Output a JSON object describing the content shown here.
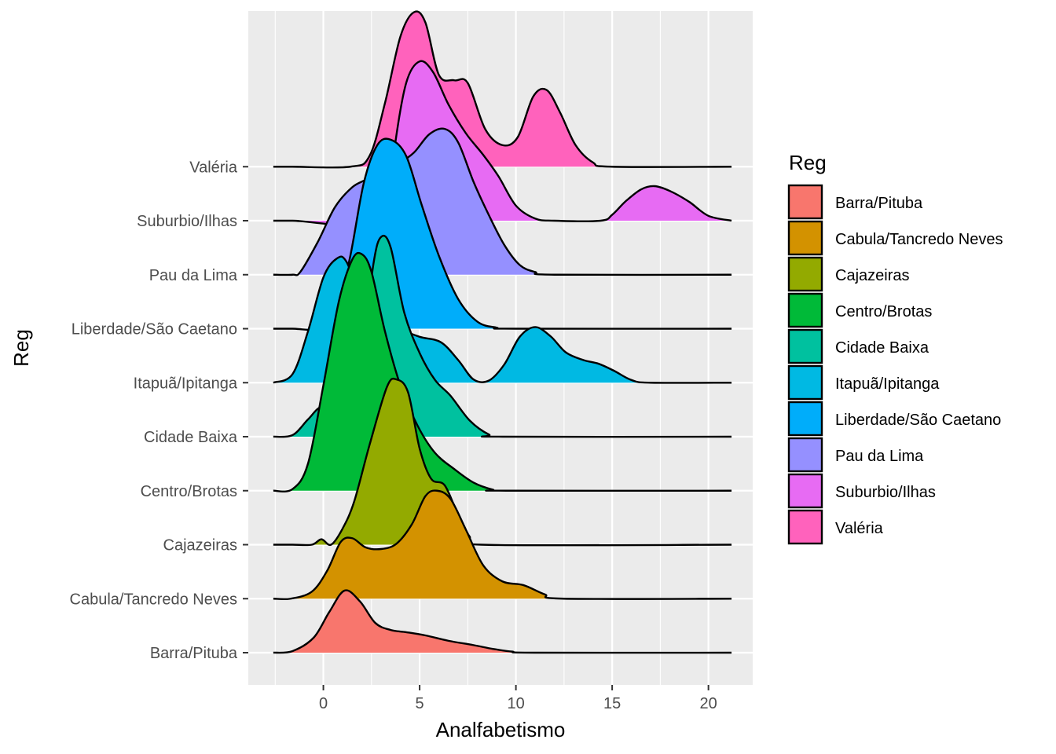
{
  "chart_data": {
    "type": "ridgeline",
    "xlabel": "Analfabetismo",
    "ylabel": "Reg",
    "xlim": [
      -3.9,
      22.3
    ],
    "x_ticks": [
      0,
      5,
      10,
      15,
      20
    ],
    "x_tick_labels": [
      "0",
      "5",
      "10",
      "15",
      "20"
    ],
    "grid": true,
    "legend": {
      "title": "Reg",
      "position": "right"
    },
    "series": [
      {
        "name": "Barra/Pituba",
        "color": "#F8766D",
        "x_range": [
          -2.6,
          21.2
        ],
        "peaks": [
          [
            -2.6,
            0.0
          ],
          [
            -1.6,
            0.03
          ],
          [
            -0.5,
            0.28
          ],
          [
            0.3,
            0.75
          ],
          [
            1.1,
            1.15
          ],
          [
            1.9,
            0.95
          ],
          [
            2.7,
            0.55
          ],
          [
            3.5,
            0.42
          ],
          [
            4.3,
            0.38
          ],
          [
            5.3,
            0.32
          ],
          [
            6.5,
            0.22
          ],
          [
            7.8,
            0.14
          ],
          [
            8.8,
            0.07
          ],
          [
            9.8,
            0.02
          ],
          [
            11,
            0.0
          ],
          [
            21.2,
            0.0
          ]
        ]
      },
      {
        "name": "Cabula/Tancredo Neves",
        "color": "#D39200",
        "x_range": [
          -2.6,
          21.2
        ],
        "peaks": [
          [
            -2.6,
            0.0
          ],
          [
            -1.7,
            0.0
          ],
          [
            -0.6,
            0.13
          ],
          [
            0.2,
            0.52
          ],
          [
            0.9,
            1.05
          ],
          [
            1.5,
            1.12
          ],
          [
            2.2,
            0.95
          ],
          [
            3.0,
            0.92
          ],
          [
            3.8,
            1.02
          ],
          [
            4.6,
            1.38
          ],
          [
            5.3,
            1.9
          ],
          [
            5.9,
            2.0
          ],
          [
            6.6,
            1.85
          ],
          [
            7.4,
            1.28
          ],
          [
            8.3,
            0.62
          ],
          [
            9.3,
            0.32
          ],
          [
            10.4,
            0.25
          ],
          [
            11.5,
            0.08
          ],
          [
            12.5,
            0.0
          ],
          [
            21.2,
            0.0
          ]
        ]
      },
      {
        "name": "Cajazeiras",
        "color": "#93AA00",
        "x_range": [
          -2.6,
          21.2
        ],
        "peaks": [
          [
            -2.6,
            0.0
          ],
          [
            -1.6,
            0.0
          ],
          [
            -0.6,
            0.0
          ],
          [
            -0.1,
            0.1
          ],
          [
            0.4,
            0.0
          ],
          [
            1.0,
            0.3
          ],
          [
            1.6,
            0.8
          ],
          [
            2.4,
            1.85
          ],
          [
            3.3,
            2.92
          ],
          [
            3.8,
            3.06
          ],
          [
            4.4,
            2.82
          ],
          [
            5.0,
            1.78
          ],
          [
            5.6,
            1.22
          ],
          [
            6.3,
            1.1
          ],
          [
            7.0,
            0.55
          ],
          [
            7.6,
            0.15
          ],
          [
            8.2,
            0.0
          ],
          [
            21.2,
            0.0
          ]
        ]
      },
      {
        "name": "Centro/Brotas",
        "color": "#00BA38",
        "x_range": [
          -2.6,
          21.2
        ],
        "peaks": [
          [
            -2.6,
            0.0
          ],
          [
            -1.6,
            0.03
          ],
          [
            -0.8,
            0.5
          ],
          [
            0.0,
            1.95
          ],
          [
            0.8,
            3.5
          ],
          [
            1.5,
            4.28
          ],
          [
            2.0,
            4.38
          ],
          [
            2.5,
            4.05
          ],
          [
            3.2,
            2.95
          ],
          [
            4.0,
            1.95
          ],
          [
            4.9,
            1.2
          ],
          [
            5.8,
            0.7
          ],
          [
            6.8,
            0.4
          ],
          [
            7.8,
            0.15
          ],
          [
            8.8,
            0.02
          ],
          [
            9.5,
            0.0
          ],
          [
            21.2,
            0.0
          ]
        ]
      },
      {
        "name": "Cidade Baixa",
        "color": "#00C19F",
        "x_range": [
          -2.6,
          21.2
        ],
        "peaks": [
          [
            -2.6,
            0.0
          ],
          [
            -1.6,
            0.03
          ],
          [
            -0.8,
            0.32
          ],
          [
            -0.1,
            0.55
          ],
          [
            0.6,
            0.38
          ],
          [
            1.3,
            0.35
          ],
          [
            2.0,
            1.5
          ],
          [
            2.6,
            3.2
          ],
          [
            3.0,
            3.7
          ],
          [
            3.5,
            3.5
          ],
          [
            4.2,
            2.3
          ],
          [
            5.0,
            1.55
          ],
          [
            5.8,
            1.05
          ],
          [
            6.6,
            0.76
          ],
          [
            7.6,
            0.3
          ],
          [
            8.6,
            0.04
          ],
          [
            9.3,
            0.0
          ],
          [
            21.2,
            0.0
          ]
        ]
      },
      {
        "name": "Itapuã/Ipitanga",
        "color": "#00B9E3",
        "x_range": [
          -2.6,
          21.2
        ],
        "peaks": [
          [
            -2.6,
            0.0
          ],
          [
            -1.6,
            0.16
          ],
          [
            -0.8,
            0.95
          ],
          [
            0.0,
            1.95
          ],
          [
            0.7,
            2.3
          ],
          [
            1.2,
            2.24
          ],
          [
            2.0,
            1.55
          ],
          [
            3.0,
            1.24
          ],
          [
            4.0,
            1.0
          ],
          [
            5.0,
            0.85
          ],
          [
            6.1,
            0.75
          ],
          [
            7.0,
            0.42
          ],
          [
            7.8,
            0.06
          ],
          [
            8.6,
            0.04
          ],
          [
            9.4,
            0.34
          ],
          [
            10.2,
            0.85
          ],
          [
            11.0,
            1.03
          ],
          [
            11.8,
            0.86
          ],
          [
            12.6,
            0.56
          ],
          [
            13.5,
            0.42
          ],
          [
            14.3,
            0.35
          ],
          [
            15.1,
            0.22
          ],
          [
            16.0,
            0.05
          ],
          [
            17.0,
            0.0
          ],
          [
            21.2,
            0.0
          ]
        ]
      },
      {
        "name": "Liberdade/São Caetano",
        "color": "#00ADFA",
        "x_range": [
          -2.6,
          21.2
        ],
        "peaks": [
          [
            -2.6,
            0.0
          ],
          [
            -1.6,
            0.0
          ],
          [
            0.0,
            0.0
          ],
          [
            0.7,
            0.35
          ],
          [
            1.4,
            1.35
          ],
          [
            2.1,
            2.7
          ],
          [
            2.8,
            3.4
          ],
          [
            3.5,
            3.5
          ],
          [
            4.3,
            3.2
          ],
          [
            5.1,
            2.3
          ],
          [
            6.0,
            1.35
          ],
          [
            7.0,
            0.55
          ],
          [
            8.0,
            0.13
          ],
          [
            9.0,
            0.02
          ],
          [
            10.0,
            0.0
          ],
          [
            21.2,
            0.0
          ]
        ]
      },
      {
        "name": "Pau da Lima",
        "color": "#9590FF",
        "x_range": [
          -2.6,
          21.2
        ],
        "peaks": [
          [
            -2.6,
            0.0
          ],
          [
            -1.6,
            0.0
          ],
          [
            -1.2,
            0.05
          ],
          [
            -0.3,
            0.6
          ],
          [
            0.6,
            1.25
          ],
          [
            1.5,
            1.62
          ],
          [
            2.3,
            1.78
          ],
          [
            3.1,
            2.0
          ],
          [
            3.9,
            2.07
          ],
          [
            4.7,
            2.26
          ],
          [
            5.5,
            2.6
          ],
          [
            6.3,
            2.7
          ],
          [
            7.0,
            2.45
          ],
          [
            7.8,
            1.72
          ],
          [
            8.6,
            1.1
          ],
          [
            9.4,
            0.55
          ],
          [
            10.2,
            0.18
          ],
          [
            11.0,
            0.05
          ],
          [
            12.0,
            0.0
          ],
          [
            21.2,
            0.0
          ]
        ]
      },
      {
        "name": "Suburbio/Ilhas",
        "color": "#E76BF3",
        "x_range": [
          -2.6,
          21.2
        ],
        "peaks": [
          [
            -2.6,
            0.0
          ],
          [
            -1.6,
            0.0
          ],
          [
            3.3,
            0.0
          ],
          [
            3.7,
            1.35
          ],
          [
            4.3,
            2.55
          ],
          [
            5.0,
            2.95
          ],
          [
            5.7,
            2.75
          ],
          [
            6.5,
            2.15
          ],
          [
            7.4,
            1.62
          ],
          [
            8.3,
            1.22
          ],
          [
            9.1,
            0.82
          ],
          [
            10.0,
            0.28
          ],
          [
            11.0,
            0.04
          ],
          [
            12.0,
            0.0
          ],
          [
            14.4,
            0.0
          ],
          [
            15.0,
            0.11
          ],
          [
            15.7,
            0.36
          ],
          [
            16.5,
            0.58
          ],
          [
            17.2,
            0.64
          ],
          [
            18.0,
            0.55
          ],
          [
            19.0,
            0.35
          ],
          [
            20.0,
            0.09
          ],
          [
            21.2,
            0.0
          ]
        ]
      },
      {
        "name": "Valéria",
        "color": "#FF62BC",
        "x_range": [
          -2.6,
          21.2
        ],
        "peaks": [
          [
            -2.6,
            0.0
          ],
          [
            -1.6,
            0.0
          ],
          [
            1.4,
            0.0
          ],
          [
            2.4,
            0.2
          ],
          [
            3.2,
            1.18
          ],
          [
            4.0,
            2.41
          ],
          [
            4.7,
            2.86
          ],
          [
            5.3,
            2.67
          ],
          [
            6.0,
            1.7
          ],
          [
            6.8,
            1.6
          ],
          [
            7.5,
            1.55
          ],
          [
            8.4,
            0.7
          ],
          [
            9.3,
            0.4
          ],
          [
            10.1,
            0.55
          ],
          [
            10.9,
            1.3
          ],
          [
            11.6,
            1.42
          ],
          [
            12.3,
            1.0
          ],
          [
            13.1,
            0.4
          ],
          [
            14.0,
            0.08
          ],
          [
            15.0,
            0.0
          ],
          [
            21.2,
            0.0
          ]
        ]
      }
    ]
  }
}
